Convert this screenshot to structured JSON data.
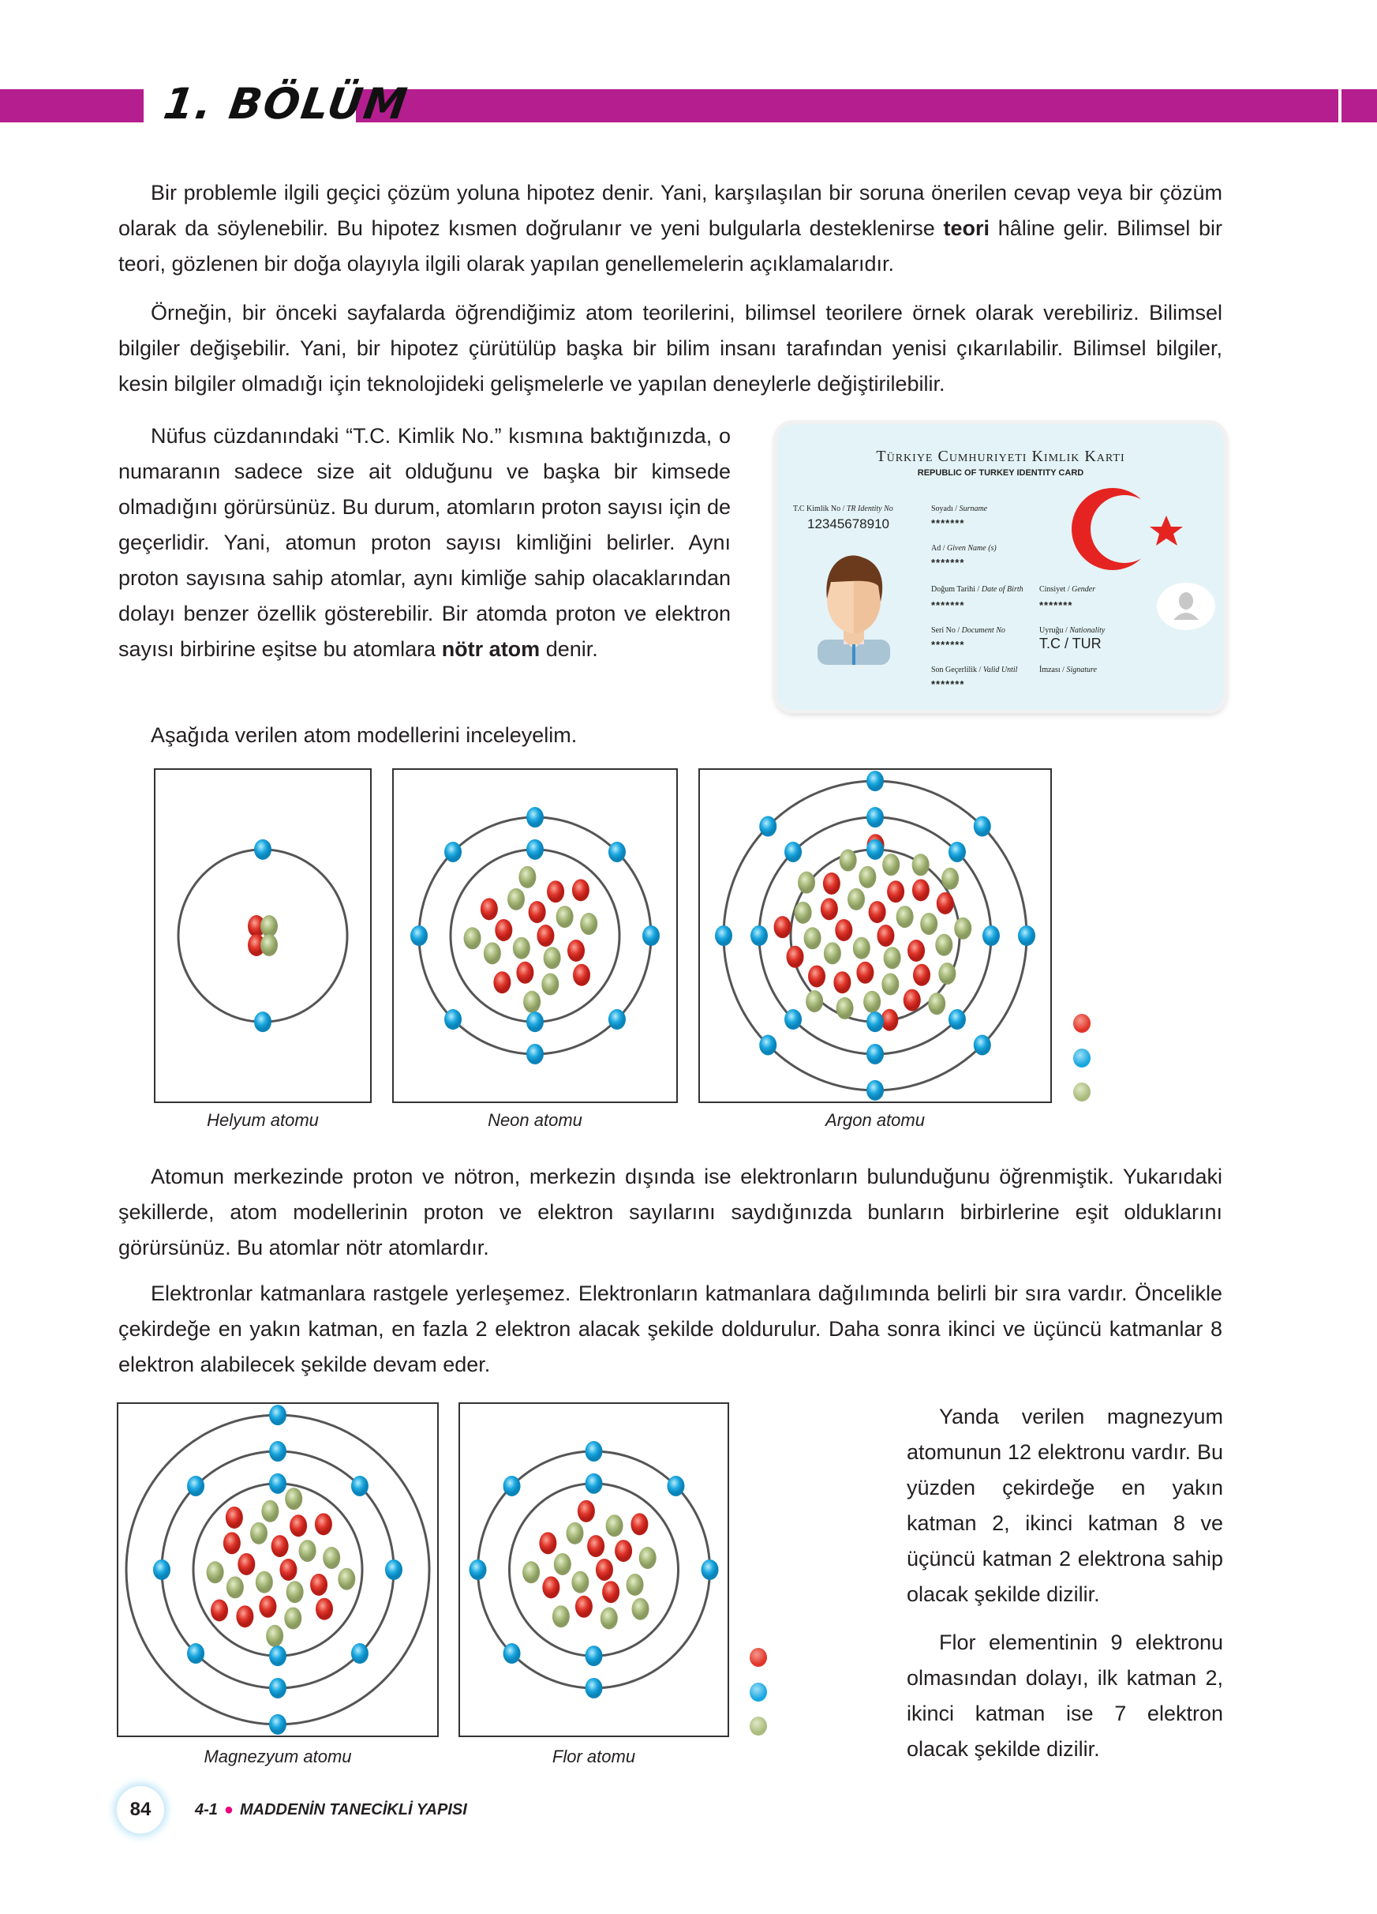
{
  "header": {
    "chapter": "1. BÖLÜM",
    "accent": "#b41e8e"
  },
  "paragraphs": {
    "p1": [
      "Bir problemle ilgili geçici çözüm yoluna hipotez denir. Yani, karşılaşılan bir soruna önerilen cevap veya bir çözüm olarak da söylenebilir. Bu hipotez kısmen doğrulanır ve yeni bulgularla desteklenirse ",
      "teori",
      " hâline gelir. Bilimsel bir teori, gözlenen bir doğa olayıyla ilgili olarak yapılan genellemelerin açıklamalarıdır."
    ],
    "p2": "Örneğin, bir önceki sayfalarda öğrendiğimiz atom teorilerini, bilimsel teorilere örnek olarak verebiliriz. Bilimsel bilgiler değişebilir. Yani, bir hipotez çürütülüp başka bir bilim insanı tarafından yenisi çıkarılabilir. Bilimsel bilgiler, kesin bilgiler olmadığı için teknolojideki gelişmelerle ve yapılan deneylerle değiştirilebilir.",
    "p3": [
      "Nüfus cüzdanındaki “T.C. Kimlik No.” kısmına baktığınızda, o numaranın sadece size ait olduğunu ve başka bir kimsede olmadığını görürsünüz. Bu durum, atomların proton sayısı için de geçerlidir. Yani, atomun proton sayısı kimliğini belirler. Aynı proton sayısına sahip atomlar, aynı kimliğe sahip olacaklarından dolayı benzer özellik gösterebilir. Bir atomda proton ve elektron sayısı birbirine eşitse bu atomlara ",
      "nötr atom",
      " denir."
    ],
    "p4": "Aşağıda verilen atom modellerini inceleyelim.",
    "p5": "Atomun merkezinde proton ve nötron, merkezin dışında ise elektronların bulunduğunu öğrenmiştik. Yukarıdaki şekillerde, atom modellerinin proton ve elektron sayılarını saydığınızda bunların birbirlerine eşit olduklarını görürsünüz. Bu atomlar nötr atomlardır.",
    "p6": "Elektronlar katmanlara rastgele yerleşemez. Elektronların katmanlara dağılımında belirli bir sıra vardır. Öncelikle çekirdeğe en yakın katman, en fazla  2  elektron alacak şekilde doldurulur. Daha sonra ikinci ve üçüncü katmanlar  8  elektron alabilecek şekilde devam eder.",
    "p7": "Yanda verilen magnezyum atomunun 12 elektronu vardır. Bu yüzden çekirdeğe en yakın katman 2, ikinci katman 8 ve üçüncü katman 2 elektrona sahip olacak şekilde dizilir.",
    "p8": "Flor elementinin 9 elektronu olmasından dolayı, ilk katman 2, ikinci katman ise 7 elektron olacak şekilde dizilir."
  },
  "id_card": {
    "title": "Türkiye Cumhuriyeti Kimlik Kartı",
    "subtitle": "REPUBLIC OF TURKEY IDENTITY CARD",
    "id_label": "T.C Kimlik No / ",
    "id_label_en": "TR Identity No",
    "id_value": "12345678910",
    "fields": [
      {
        "label": "Soyadı / ",
        "en": "Surname",
        "value": "*******"
      },
      {
        "label": "Ad / ",
        "en": "Given Name (s)",
        "value": "*******"
      },
      {
        "label": "Doğum Tarihi / ",
        "en": "Date of Birth",
        "value": "*******"
      },
      {
        "label": "Cinsiyet / ",
        "en": "Gender",
        "value": "*******"
      },
      {
        "label": "Seri No / ",
        "en": "Document No",
        "value": "*******"
      },
      {
        "label": "Uyruğu / ",
        "en": "Nationality",
        "value": "T.C / TUR"
      },
      {
        "label": "Son Geçerlilik  / ",
        "en": "Valid Until",
        "value": "*******"
      },
      {
        "label": "İmzası / ",
        "en": "Signature",
        "value": ""
      }
    ],
    "flag_color": "#e52421"
  },
  "atoms": [
    {
      "caption": "Helyum atomu",
      "protons": 2,
      "neutrons": 2,
      "shells": [
        2
      ]
    },
    {
      "caption": "Neon atomu",
      "protons": 10,
      "neutrons": 10,
      "shells": [
        2,
        8
      ]
    },
    {
      "caption": "Argon atomu",
      "protons": 18,
      "neutrons": 22,
      "shells": [
        2,
        8,
        8
      ]
    },
    {
      "caption": "Magnezyum atomu",
      "protons": 12,
      "neutrons": 12,
      "shells": [
        2,
        8,
        2
      ]
    },
    {
      "caption": "Flor atomu",
      "protons": 9,
      "neutrons": 10,
      "shells": [
        2,
        7
      ]
    }
  ],
  "colors": {
    "proton": "#e0352b",
    "electron": "#1aa7e0",
    "neutron": "#a9bb7c"
  },
  "footer": {
    "page": "84",
    "unit": "4-1",
    "title": "MADDENİN TANECİKLİ YAPISI"
  }
}
